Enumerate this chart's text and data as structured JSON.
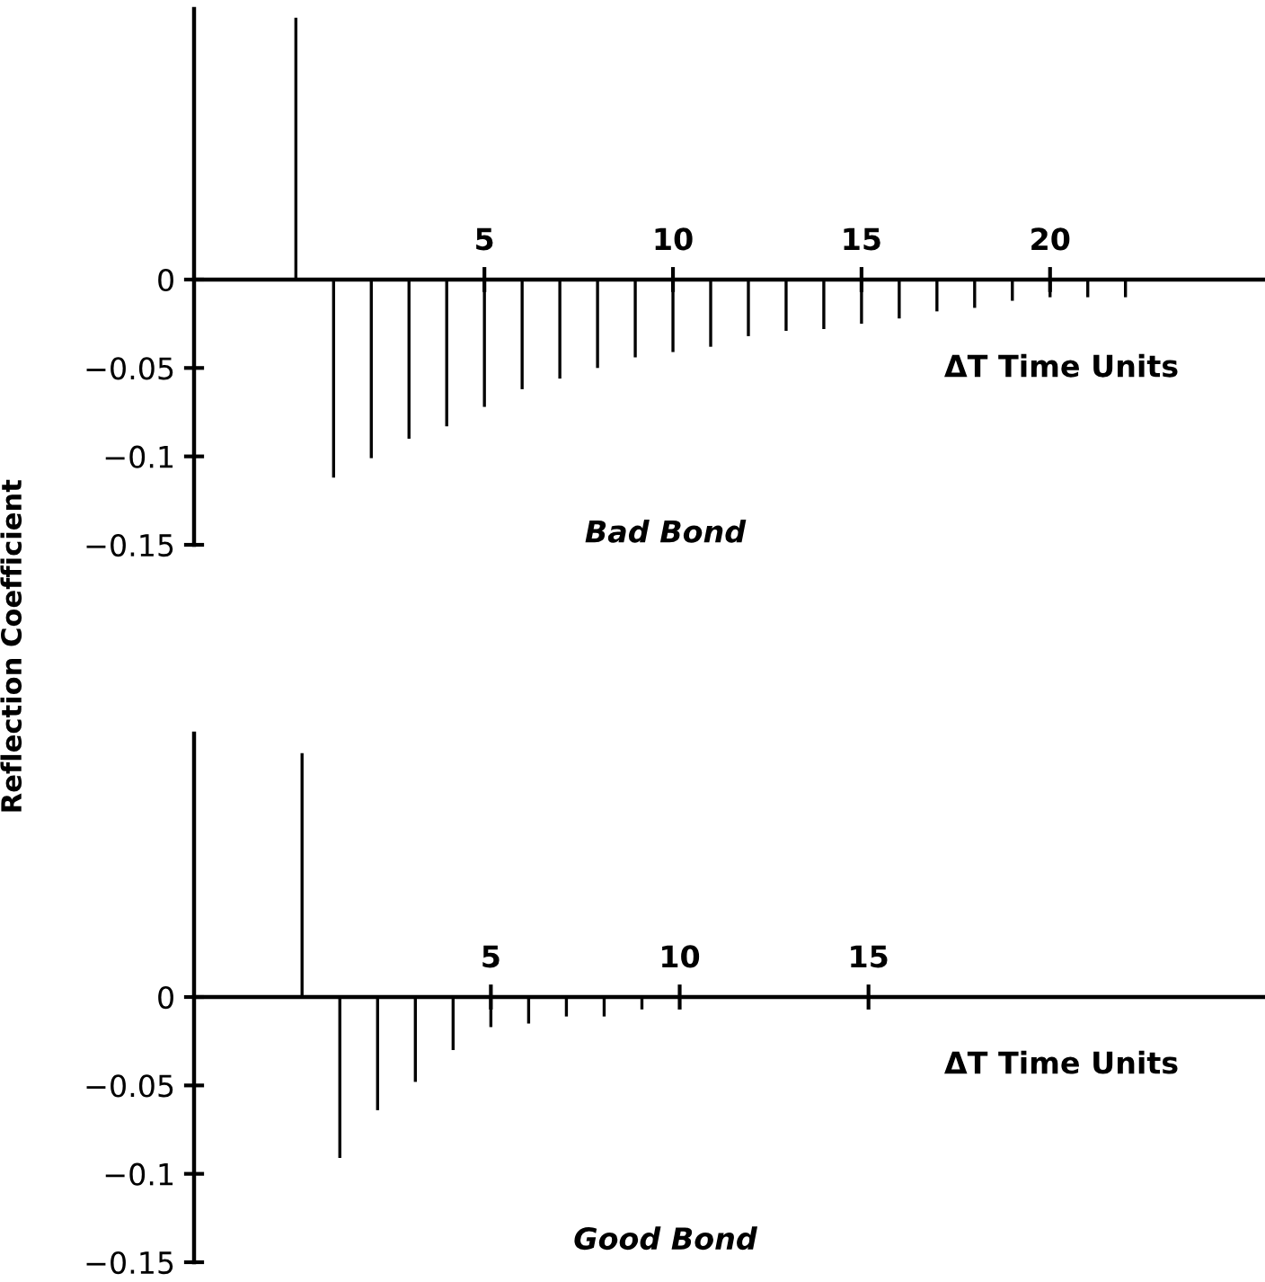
{
  "chart_data": [
    {
      "type": "bar",
      "title": "Bad Bond",
      "xlabel": "ΔT Time Units",
      "ylabel": "Reflection Coefficient",
      "x": [
        0,
        1,
        2,
        3,
        4,
        5,
        6,
        7,
        8,
        9,
        10,
        11,
        12,
        13,
        14,
        15,
        16,
        17,
        18,
        19,
        20,
        21,
        22
      ],
      "series": [
        {
          "color": "#000000",
          "values": [
            0.148,
            -0.112,
            -0.101,
            -0.09,
            -0.083,
            -0.072,
            -0.062,
            -0.056,
            -0.05,
            -0.044,
            -0.041,
            -0.038,
            -0.032,
            -0.029,
            -0.028,
            -0.025,
            -0.022,
            -0.018,
            -0.016,
            -0.012,
            -0.01,
            -0.01,
            -0.01
          ]
        }
      ],
      "xlim": [
        -2.7,
        25.7
      ],
      "xticks": [
        5,
        10,
        15,
        20
      ],
      "ylim": [
        -0.15,
        0.153
      ],
      "yticks": [
        0,
        {
          "value": -0.05,
          "label": "−0.05"
        },
        {
          "value": -0.1,
          "label": "−0.1"
        },
        {
          "value": -0.15,
          "label": "−0.15"
        }
      ],
      "grid": false,
      "legend": false
    },
    {
      "type": "bar",
      "title": "Good Bond",
      "xlabel": "ΔT Time Units",
      "x": [
        0,
        1,
        2,
        3,
        4,
        5,
        6,
        7,
        8,
        9
      ],
      "series": [
        {
          "color": "#000000",
          "values": [
            0.138,
            -0.091,
            -0.064,
            -0.048,
            -0.03,
            -0.017,
            -0.015,
            -0.011,
            -0.011,
            -0.007
          ]
        }
      ],
      "xlim": [
        -2.86,
        25.5
      ],
      "xticks": [
        5,
        10,
        15
      ],
      "ylim": [
        -0.15,
        0.149
      ],
      "yticks": [
        0,
        {
          "value": -0.05,
          "label": "−0.05"
        },
        {
          "value": -0.1,
          "label": "−0.1"
        },
        {
          "value": -0.15,
          "label": "−0.15"
        }
      ],
      "grid": false,
      "legend": false
    }
  ]
}
